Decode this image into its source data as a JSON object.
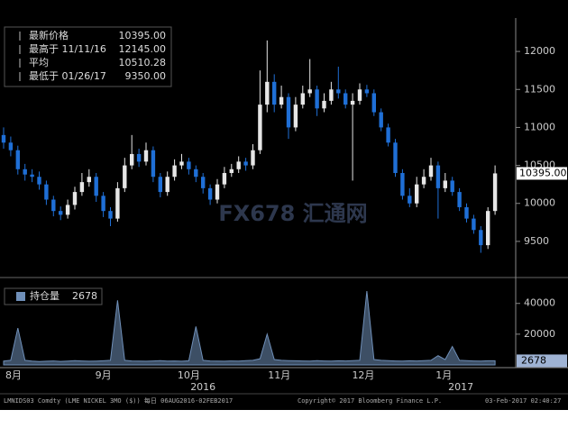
{
  "chart_data": [
    {
      "type": "candlestick",
      "legend": [
        {
          "label": "最新价格",
          "value": "10395.00"
        },
        {
          "label": "最高于 11/11/16",
          "value": "12145.00"
        },
        {
          "label": "平均",
          "value": "10510.28"
        },
        {
          "label": "最低于 01/26/17",
          "value": "9350.00"
        }
      ],
      "watermark": "FX678 汇通网",
      "last_price": {
        "value": 10395,
        "label": "10395.00"
      },
      "up_color": "#e6e6e6",
      "down_color": "#1f6fd6",
      "categories": [
        null,
        null,
        null,
        null,
        null,
        null,
        null,
        null,
        null,
        null,
        null,
        null,
        null,
        null,
        null,
        null,
        null,
        null,
        null,
        null,
        null,
        null,
        null,
        null,
        null,
        null,
        null,
        null,
        null,
        null,
        null,
        null,
        null,
        null,
        null,
        null,
        null,
        null,
        null,
        null,
        null,
        null,
        null,
        null,
        null,
        null,
        null,
        null,
        null,
        null,
        null,
        null,
        null,
        null,
        null,
        null,
        null,
        null,
        null,
        null,
        null,
        null,
        null,
        null,
        null,
        null,
        null,
        null,
        null,
        null
      ],
      "open": [
        10900,
        10800,
        10700,
        10450,
        10380,
        10350,
        10250,
        10050,
        9900,
        9850,
        9980,
        10150,
        10280,
        10350,
        10100,
        9900,
        9800,
        10200,
        10500,
        10650,
        10550,
        10700,
        10350,
        10150,
        10350,
        10500,
        10550,
        10450,
        10350,
        10200,
        10050,
        10250,
        10400,
        10450,
        10550,
        10500,
        10700,
        11300,
        11600,
        11300,
        11400,
        11000,
        11300,
        11450,
        11500,
        11250,
        11350,
        11500,
        11450,
        11300,
        11350,
        11500,
        11450,
        11200,
        11000,
        10800,
        10400,
        10100,
        10000,
        10250,
        10350,
        10500,
        10200,
        10300,
        10150,
        9950,
        9800,
        9650,
        9450,
        9900
      ],
      "high": [
        11000,
        10880,
        10760,
        10520,
        10450,
        10420,
        10300,
        10100,
        9960,
        10050,
        10220,
        10400,
        10450,
        10400,
        10150,
        9950,
        10280,
        10600,
        10900,
        10720,
        10800,
        10750,
        10400,
        10420,
        10580,
        10650,
        10600,
        10500,
        10400,
        10250,
        10320,
        10480,
        10520,
        10620,
        10600,
        10780,
        11750,
        12145,
        11700,
        11550,
        11450,
        11400,
        11550,
        11900,
        11550,
        11450,
        11600,
        11800,
        11500,
        11450,
        11580,
        11560,
        11500,
        11250,
        11050,
        10850,
        10450,
        10200,
        10350,
        10450,
        10600,
        10550,
        10400,
        10350,
        10200,
        10000,
        9850,
        9700,
        9950,
        10500
      ],
      "low": [
        10720,
        10620,
        10380,
        10300,
        10280,
        10180,
        9980,
        9830,
        9780,
        9800,
        9920,
        10100,
        10220,
        10020,
        9820,
        9700,
        9760,
        10150,
        10450,
        10480,
        10500,
        10280,
        10080,
        10100,
        10300,
        10450,
        10380,
        10280,
        10130,
        9980,
        10000,
        10200,
        10350,
        10400,
        10430,
        10450,
        10650,
        11200,
        11200,
        11250,
        10850,
        10950,
        11250,
        11400,
        11150,
        11200,
        11300,
        11380,
        11250,
        10300,
        11300,
        11400,
        11150,
        10950,
        10750,
        10350,
        10050,
        9950,
        9950,
        10200,
        10300,
        9800,
        10150,
        10100,
        9900,
        9750,
        9600,
        9350,
        9400,
        9850
      ],
      "close": [
        10800,
        10700,
        10450,
        10380,
        10350,
        10250,
        10050,
        9900,
        9850,
        9980,
        10150,
        10280,
        10350,
        10100,
        9900,
        9800,
        10200,
        10500,
        10650,
        10550,
        10700,
        10350,
        10150,
        10350,
        10500,
        10550,
        10450,
        10350,
        10200,
        10050,
        10250,
        10400,
        10450,
        10550,
        10500,
        10700,
        11300,
        11600,
        11300,
        11400,
        11000,
        11300,
        11450,
        11500,
        11250,
        11350,
        11500,
        11450,
        11300,
        11350,
        11500,
        11450,
        11200,
        11000,
        10800,
        10400,
        10100,
        10000,
        10250,
        10350,
        10500,
        10200,
        10300,
        10150,
        9950,
        9800,
        9650,
        9450,
        9900,
        10395
      ],
      "ylim": [
        9060,
        12440
      ],
      "yticks": [
        9500,
        10000,
        10500,
        11000,
        11500,
        12000
      ],
      "x_labels": [
        {
          "value": 1.4,
          "label": "8月"
        },
        {
          "value": 14,
          "label": "9月"
        },
        {
          "value": 26,
          "label": "10月"
        },
        {
          "value": 38.7,
          "label": "11月"
        },
        {
          "value": 50.5,
          "label": "12月"
        },
        {
          "value": 61.8,
          "label": "1月"
        }
      ],
      "year_labels": [
        {
          "value": 28,
          "label": "2016"
        },
        {
          "value": 64.2,
          "label": "2017"
        }
      ]
    },
    {
      "type": "area",
      "series": [
        {
          "name": "持仓量",
          "color": "#6f8fb8",
          "last_label": "2678",
          "values": [
            2500,
            3000,
            24000,
            3000,
            2500,
            2200,
            2400,
            2600,
            2300,
            2500,
            2800,
            2600,
            2400,
            2500,
            2700,
            3000,
            42000,
            3000,
            2600,
            2500,
            2400,
            2600,
            2800,
            2500,
            2600,
            2400,
            2700,
            25000,
            3000,
            2600,
            2500,
            2400,
            2600,
            2500,
            2800,
            3000,
            4000,
            20000,
            3500,
            3000,
            2800,
            2700,
            2600,
            2500,
            2800,
            2600,
            2500,
            2700,
            2600,
            2800,
            3000,
            48000,
            3500,
            3000,
            2800,
            2600,
            2500,
            2700,
            2600,
            2800,
            3000,
            6000,
            3500,
            12000,
            3000,
            2800,
            2600,
            2500,
            2700,
            2678
          ]
        }
      ],
      "last_value": 2678,
      "ylim": [
        0,
        54500
      ],
      "yticks": [
        20000,
        40000
      ]
    }
  ],
  "footer": {
    "left": "LMNIDS03 Comdty (LME NICKEL  3MO ($))  每日 06AUG2016-02FEB2017",
    "center": "Copyright© 2017 Bloomberg Finance L.P.",
    "right": "03-Feb-2017 02:40:27"
  }
}
